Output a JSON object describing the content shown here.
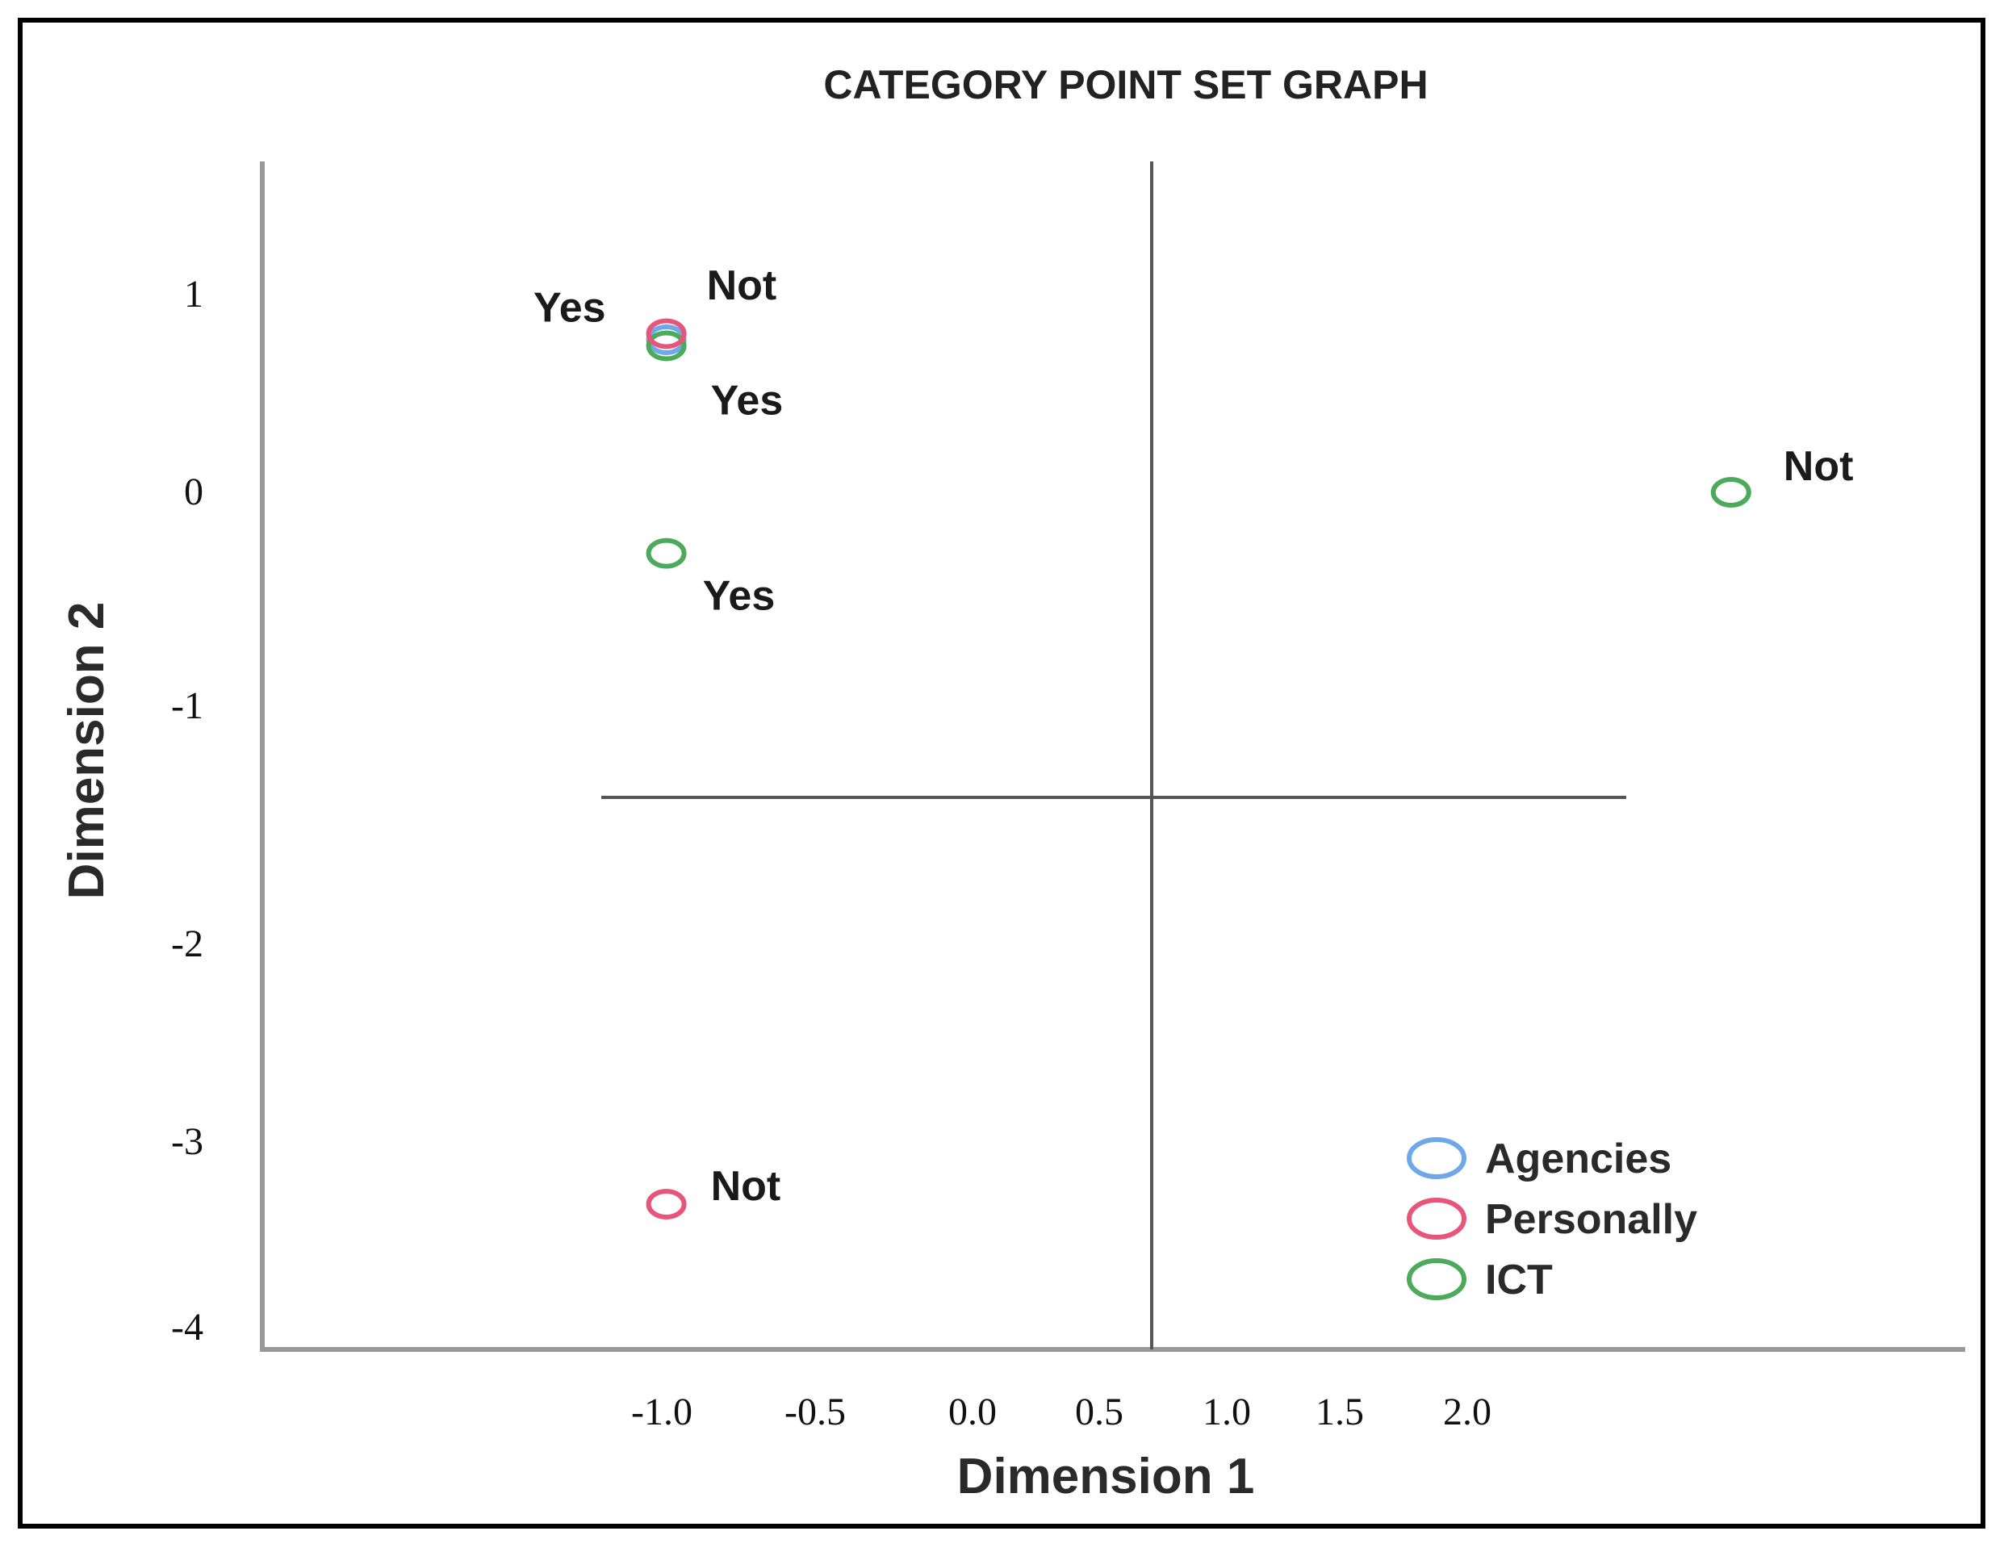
{
  "chart_data": {
    "type": "scatter",
    "title": "CATEGORY POINT SET GRAPH",
    "xlabel": "Dimension 1",
    "ylabel": "Dimension 2",
    "x_ticks": [
      "-1.0",
      "-0.5",
      "0.0",
      "0.5",
      "1.0",
      "1.5",
      "2.0"
    ],
    "y_ticks": [
      "1",
      "0",
      "-1",
      "-2",
      "-3",
      "-4"
    ],
    "xlim": [
      -1.3,
      2.6
    ],
    "ylim": [
      -4.1,
      1.6
    ],
    "grid": false,
    "reference_lines": {
      "x": 0.5,
      "y": -1.5
    },
    "legend_position": "bottom-right",
    "series": [
      {
        "name": "Agencies",
        "color": "#6fa8e6",
        "points": [
          {
            "x": -1.05,
            "y": 0.75,
            "label": "Not"
          }
        ]
      },
      {
        "name": "Personally",
        "color": "#e8557a",
        "points": [
          {
            "x": -1.05,
            "y": 0.78,
            "label": "Yes"
          },
          {
            "x": -1.05,
            "y": -3.5,
            "label": "Not"
          }
        ]
      },
      {
        "name": "ICT",
        "color": "#4caa5a",
        "points": [
          {
            "x": -1.05,
            "y": 0.72,
            "label": "Yes"
          },
          {
            "x": -1.05,
            "y": -0.3,
            "label": "Yes"
          },
          {
            "x": 2.35,
            "y": 0.0,
            "label": "Not"
          }
        ]
      }
    ]
  }
}
